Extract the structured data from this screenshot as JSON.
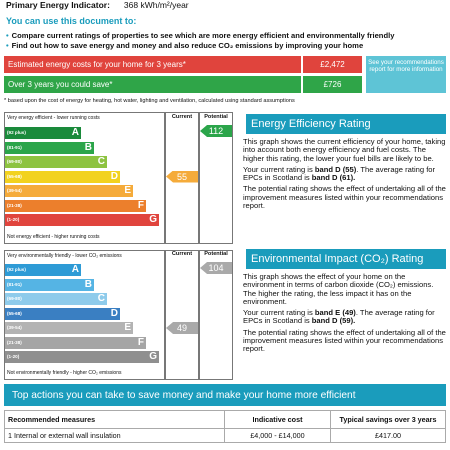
{
  "header": {
    "label": "Primary Energy Indicator:",
    "value": "368 kWh/m²/year"
  },
  "use_document": {
    "title": "You can use this document to:",
    "bullets": [
      "Compare current ratings of properties to see which are more energy efficient and environmentally friendly",
      "Find out how to save energy and money and also reduce CO₂ emissions by improving your home"
    ]
  },
  "costs": {
    "estimated_label": "Estimated energy costs for your home for 3 years*",
    "estimated_value": "£2,472",
    "saving_label": "Over 3 years you could save*",
    "saving_value": "£726",
    "see_box": "See your recommendations report for more information",
    "footnote": "* based upon the cost of energy for heating, hot water, lighting and ventilation, calculated using standard assumptions"
  },
  "energy_chart": {
    "top_note": "Very energy efficient - lower running costs",
    "bottom_note": "Not energy efficient - higher running costs",
    "current_header": "Current",
    "potential_header": "Potential",
    "current_value": 55,
    "potential_value": 112,
    "current_label": "55",
    "potential_label": "112",
    "bands": [
      {
        "range": "(92 plus)",
        "letter": "A",
        "color": "#1a8a3b"
      },
      {
        "range": "(81-91)",
        "letter": "B",
        "color": "#2ba54a"
      },
      {
        "range": "(69-80)",
        "letter": "C",
        "color": "#8dc340"
      },
      {
        "range": "(55-68)",
        "letter": "D",
        "color": "#f2d21f"
      },
      {
        "range": "(39-54)",
        "letter": "E",
        "color": "#f5ab3a"
      },
      {
        "range": "(21-38)",
        "letter": "F",
        "color": "#ec7f2c"
      },
      {
        "range": "(1-20)",
        "letter": "G",
        "color": "#e0443d"
      }
    ]
  },
  "env_chart": {
    "top_note": "Very environmentally friendly - lower CO₂ emissions",
    "bottom_note": "Not environmentally friendly - higher CO₂ emissions",
    "current_header": "Current",
    "potential_header": "Potential",
    "current_value": 49,
    "potential_value": 104,
    "current_label": "49",
    "potential_label": "104",
    "bands": [
      {
        "range": "(92 plus)",
        "letter": "A",
        "color": "#2e9bd6"
      },
      {
        "range": "(81-91)",
        "letter": "B",
        "color": "#55b4e4"
      },
      {
        "range": "(69-80)",
        "letter": "C",
        "color": "#8ecbeb"
      },
      {
        "range": "(55-68)",
        "letter": "D",
        "color": "#3a7fc2"
      },
      {
        "range": "(39-54)",
        "letter": "E",
        "color": "#b3b3b3"
      },
      {
        "range": "(21-38)",
        "letter": "F",
        "color": "#a5a5a5"
      },
      {
        "range": "(1-20)",
        "letter": "G",
        "color": "#8f8f8f"
      }
    ],
    "current_color": "#a9a9a9",
    "potential_color": "#a9a9a9"
  },
  "eer": {
    "title": "Energy Efficiency Rating",
    "p1": "This graph shows the current efficiency of your home, taking into account both energy efficiency and fuel costs. The higher this rating, the lower your fuel bills are likely to be.",
    "p2_pre": "Your current rating is ",
    "p2_bold1": "band D (55)",
    "p2_mid": ". The average rating for EPCs in Scotland is ",
    "p2_bold2": "band D (61).",
    "p3": "The potential rating shows the effect of undertaking all of the improvement measures listed within your recommendations report."
  },
  "eir": {
    "title": "Environmental Impact (CO₂) Rating",
    "p1": "This graph shows the effect of your home on the environment in terms of carbon dioxide (CO₂) emissions. The higher the rating, the less impact it has on the environment.",
    "p2_pre": "Your current rating is ",
    "p2_bold1": "band E (49)",
    "p2_mid": ". The average rating for EPCs in Scotland is ",
    "p2_bold2": "band D (59).",
    "p3": "The potential rating shows the effect of undertaking all of the improvement measures listed within your recommendations report."
  },
  "actions": {
    "title": "Top actions you can take to save money and make your home more efficient",
    "headers": [
      "Recommended measures",
      "Indicative cost",
      "Typical savings over 3 years"
    ],
    "rows": [
      [
        "1 Internal or external wall insulation",
        "£4,000 - £14,000",
        "£417.00"
      ]
    ]
  },
  "colors": {
    "accent": "#1a9cbc",
    "red": "#e0443d",
    "green": "#2fa548",
    "energy_current_arrow": "#f5ab3a",
    "energy_potential_arrow": "#2ba54a"
  }
}
